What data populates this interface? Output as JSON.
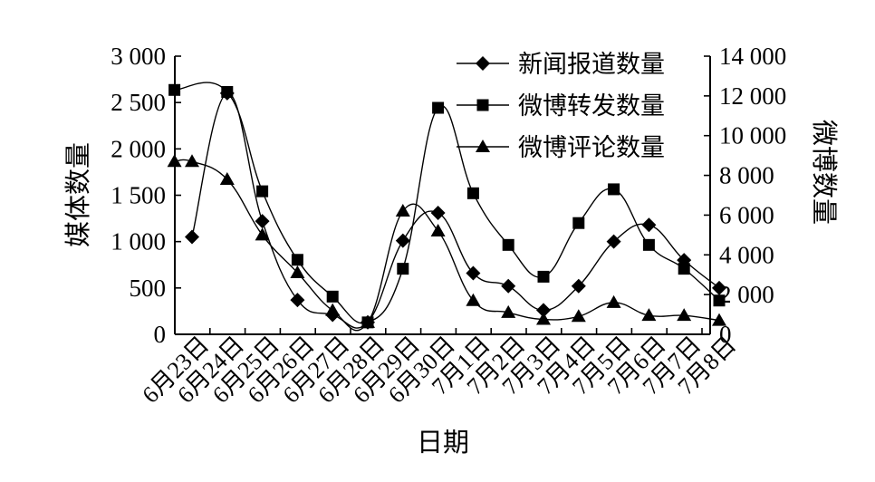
{
  "chart_data": {
    "type": "line",
    "xlabel": "日期",
    "ylabel_left": "媒体数量",
    "ylabel_right": "微博数量",
    "categories": [
      "6月23日",
      "6月24日",
      "6月25日",
      "6月26日",
      "6月27日",
      "6月28日",
      "6月29日",
      "6月30日",
      "7月1日",
      "7月2日",
      "7月3日",
      "7月4日",
      "7月5日",
      "7月6日",
      "7月7日",
      "7月8日"
    ],
    "y_left": {
      "min": 0,
      "max": 3000,
      "ticks": [
        0,
        500,
        1000,
        1500,
        2000,
        2500,
        3000
      ],
      "tick_labels": [
        "0",
        "500",
        "1 000",
        "1 500",
        "2 000",
        "2 500",
        "3 000"
      ]
    },
    "y_right": {
      "min": 0,
      "max": 14000,
      "ticks": [
        0,
        2000,
        4000,
        6000,
        8000,
        10000,
        12000,
        14000
      ],
      "tick_labels": [
        "0",
        "2 000",
        "4 000",
        "6 000",
        "8 000",
        "10 000",
        "12 000",
        "14 000"
      ]
    },
    "series": [
      {
        "name": "新闻报道数量",
        "axis": "left",
        "marker": "diamond",
        "x": [
          0,
          1,
          2,
          3,
          4,
          5,
          6,
          7,
          8,
          9,
          10,
          11,
          12,
          13,
          14,
          15
        ],
        "values": [
          1050,
          2600,
          1220,
          370,
          210,
          130,
          1010,
          1310,
          660,
          520,
          260,
          520,
          1000,
          1180,
          800,
          500
        ]
      },
      {
        "name": "微博转发数量",
        "axis": "right",
        "marker": "square",
        "x": [
          -0.5,
          1,
          2,
          3,
          4,
          5,
          6,
          7,
          8,
          9,
          10,
          11,
          12,
          13,
          14,
          15
        ],
        "values": [
          12300,
          12200,
          7200,
          3750,
          1900,
          600,
          3300,
          11400,
          7100,
          4500,
          2900,
          5600,
          7300,
          4500,
          3300,
          1700
        ]
      },
      {
        "name": "微博评论数量",
        "axis": "right",
        "marker": "triangle",
        "x": [
          -0.5,
          0,
          1,
          2,
          3,
          4,
          5,
          6,
          7,
          8,
          9,
          10,
          11,
          12,
          13,
          14,
          15
        ],
        "values": [
          8700,
          8700,
          7800,
          5000,
          3100,
          1200,
          600,
          6200,
          5200,
          1700,
          1100,
          750,
          900,
          1600,
          950,
          950,
          700
        ]
      }
    ],
    "legend": {
      "position": "top-right"
    }
  }
}
